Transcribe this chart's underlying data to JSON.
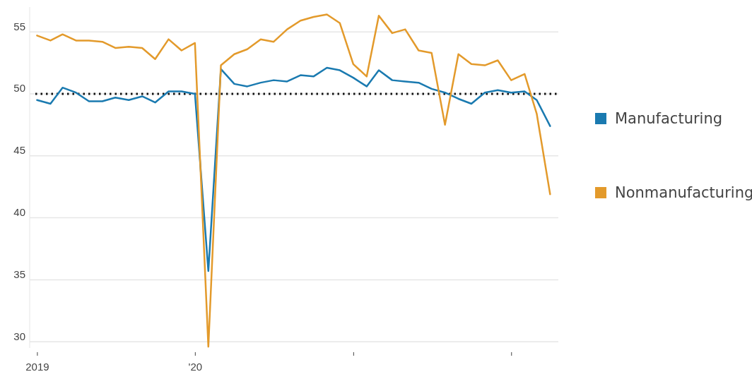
{
  "chart_data": {
    "type": "line",
    "x": [
      "2019-01",
      "2019-02",
      "2019-03",
      "2019-04",
      "2019-05",
      "2019-06",
      "2019-07",
      "2019-08",
      "2019-09",
      "2019-10",
      "2019-11",
      "2019-12",
      "2020-01",
      "2020-02",
      "2020-03",
      "2020-04",
      "2020-05",
      "2020-06",
      "2020-07",
      "2020-08",
      "2020-09",
      "2020-10",
      "2020-11",
      "2020-12",
      "2021-01",
      "2021-02",
      "2021-03",
      "2021-04",
      "2021-05",
      "2021-06",
      "2021-07",
      "2021-08",
      "2021-09",
      "2021-10",
      "2021-11",
      "2021-12",
      "2022-01",
      "2022-02",
      "2022-03",
      "2022-04"
    ],
    "series": [
      {
        "name": "Manufacturing",
        "color": "#1a7ab0",
        "values": [
          49.5,
          49.2,
          50.5,
          50.1,
          49.4,
          49.4,
          49.7,
          49.5,
          49.8,
          49.3,
          50.2,
          50.2,
          50.0,
          35.7,
          52.0,
          50.8,
          50.6,
          50.9,
          51.1,
          51.0,
          51.5,
          51.4,
          52.1,
          51.9,
          51.3,
          50.6,
          51.9,
          51.1,
          51.0,
          50.9,
          50.4,
          50.1,
          49.6,
          49.2,
          50.1,
          50.3,
          50.1,
          50.2,
          49.5,
          47.4
        ]
      },
      {
        "name": "Nonmanufacturing",
        "color": "#e39a2b",
        "values": [
          54.7,
          54.3,
          54.8,
          54.3,
          54.3,
          54.2,
          53.7,
          53.8,
          53.7,
          52.8,
          54.4,
          53.5,
          54.1,
          29.6,
          52.3,
          53.2,
          53.6,
          54.4,
          54.2,
          55.2,
          55.9,
          56.2,
          56.4,
          55.7,
          52.4,
          51.4,
          56.3,
          54.9,
          55.2,
          53.5,
          53.3,
          47.5,
          53.2,
          52.4,
          52.3,
          52.7,
          51.1,
          51.6,
          48.4,
          41.9
        ]
      }
    ],
    "xlim": [
      "2018-12-15",
      "2022-04-20"
    ],
    "xticks": [
      {
        "value": "2019-01",
        "label": "2019"
      },
      {
        "value": "2020-01",
        "label": "'20"
      },
      {
        "value": "2021-01",
        "label": null
      },
      {
        "value": "2022-01",
        "label": null
      }
    ],
    "ylim": [
      29.5,
      57
    ],
    "yticks": [
      30,
      35,
      40,
      45,
      50,
      55
    ],
    "grid": "y",
    "legend": "right",
    "ref_lines": [
      {
        "axis": "y",
        "value": 50,
        "line_style": "dotted",
        "color": "#111111"
      }
    ]
  }
}
